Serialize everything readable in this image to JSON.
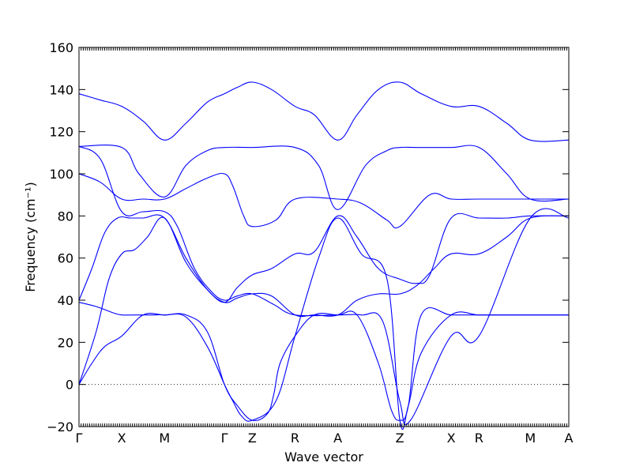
{
  "chart_data": {
    "type": "line",
    "title": "",
    "xlabel": "Wave vector",
    "ylabel": "Frequency (cm⁻¹)",
    "ylim": [
      -20,
      160
    ],
    "yticks": [
      -20,
      0,
      20,
      40,
      60,
      80,
      100,
      120,
      140,
      160
    ],
    "grid": false,
    "zero_line": true,
    "colors": {
      "bands": "#0000ff",
      "axis": "#000000"
    },
    "xlim": [
      0,
      11.45
    ],
    "high_symmetry_points": [
      {
        "label": "Γ",
        "x": 0
      },
      {
        "label": "X",
        "x": 1
      },
      {
        "label": "M",
        "x": 2
      },
      {
        "label": "Γ",
        "x": 3.4
      },
      {
        "label": "Z",
        "x": 4.05
      },
      {
        "label": "R",
        "x": 5.05
      },
      {
        "label": "A",
        "x": 6.05
      },
      {
        "label": "Z",
        "x": 7.5
      },
      {
        "label": "X",
        "x": 8.7
      },
      {
        "label": "R",
        "x": 9.35
      },
      {
        "label": "M",
        "x": 10.55
      },
      {
        "label": "A",
        "x": 11.45
      }
    ],
    "series": [
      {
        "x": [
          0,
          0.5,
          1,
          1.5,
          2,
          2.5,
          3,
          3.4,
          3.7,
          4.05,
          4.5,
          5.05,
          5.5,
          6.05,
          6.5,
          7,
          7.5,
          8,
          8.7,
          9.35,
          10,
          10.55,
          11.45
        ],
        "y": [
          138,
          135,
          132,
          125,
          116,
          124,
          134,
          138,
          141,
          143.5,
          140,
          132,
          128,
          116,
          128,
          140,
          143.5,
          138,
          132,
          132,
          124,
          116,
          116
        ]
      },
      {
        "x": [
          0,
          1,
          1.4,
          2,
          2.5,
          3,
          3.4,
          4.05,
          5.05,
          5.6,
          6.05,
          6.7,
          7.2,
          7.5,
          7.9,
          8.7,
          9.35,
          10,
          10.55,
          11.45
        ],
        "y": [
          113,
          112.5,
          100,
          89,
          104,
          111,
          112.5,
          112.5,
          112.5,
          104,
          83,
          104,
          111,
          112.5,
          112.5,
          112.5,
          112.5,
          100,
          88,
          88
        ]
      },
      {
        "x": [
          0,
          0.5,
          1,
          1.5,
          2,
          2.3,
          2.7,
          3.1,
          3.4,
          3.7,
          4.05,
          4.55,
          5.05,
          6.05,
          6.6,
          7.1,
          7.5,
          7.75,
          8.7,
          9.35,
          10.55,
          11.45
        ],
        "y": [
          113,
          107,
          82,
          82,
          82,
          75,
          55,
          44,
          40,
          42,
          43,
          38,
          33,
          33,
          33,
          30,
          -8,
          -17,
          23,
          23,
          79,
          79
        ]
      },
      {
        "x": [
          0,
          0.5,
          1,
          1.5,
          2,
          2.5,
          3,
          3.4,
          3.6,
          3.85,
          4.05,
          4.6,
          5.05,
          6.05,
          6.6,
          7.2,
          7.5,
          8.2,
          8.7,
          9.35,
          10,
          10.55,
          11.45
        ],
        "y": [
          100,
          96,
          88,
          88,
          88,
          93,
          98,
          100,
          94,
          80,
          75,
          78,
          88,
          88,
          86,
          78,
          75,
          90,
          88,
          88,
          88,
          88,
          88
        ]
      },
      {
        "x": [
          0,
          0.3,
          0.6,
          0.9,
          1.2,
          1.5,
          2,
          2.5,
          3,
          3.4,
          3.7,
          4.05,
          4.5,
          5.05,
          5.5,
          6.05,
          6.5,
          7,
          7.5,
          7.9,
          8.3,
          8.7,
          9.35,
          10,
          10.55,
          11.45
        ],
        "y": [
          40,
          55,
          72,
          79,
          79,
          79,
          79,
          60,
          45,
          39,
          41,
          43,
          42,
          33,
          33,
          33,
          40,
          43,
          43,
          47,
          55,
          62,
          62,
          70,
          79,
          80
        ]
      },
      {
        "x": [
          0,
          0.4,
          0.8,
          1,
          1.3,
          1.7,
          2,
          2.5,
          3,
          3.4,
          3.6,
          3.8,
          4.05,
          4.6,
          5.05,
          5.6,
          6.05,
          6.6,
          7.2,
          7.5,
          7.7,
          8,
          8.7,
          9.35,
          10,
          10.55,
          11.45
        ],
        "y": [
          39,
          37,
          34,
          33,
          33,
          33,
          33,
          32,
          18,
          0,
          -8,
          -15,
          -17,
          -8,
          23,
          60,
          79,
          62,
          50,
          -17,
          -10,
          15,
          33,
          33,
          33,
          33,
          33
        ]
      },
      {
        "x": [
          0,
          0.3,
          0.6,
          1,
          1.5,
          2,
          2.5,
          3,
          3.4,
          3.7,
          4.05,
          4.4,
          4.55,
          4.7,
          5.05,
          5.5,
          6.05,
          6.5,
          7,
          7.3,
          7.5,
          7.7,
          8,
          8.7,
          9.35,
          10,
          10.55,
          11.45
        ],
        "y": [
          0,
          10,
          18,
          23,
          33,
          33,
          33,
          25,
          0,
          -10,
          -17,
          -14,
          -5,
          10,
          23,
          33,
          33,
          33,
          10,
          -12,
          -17,
          -10,
          33,
          33,
          33,
          33,
          33,
          33
        ]
      },
      {
        "x": [
          0,
          0.4,
          0.7,
          1,
          1.3,
          1.6,
          2,
          2.5,
          3,
          3.4,
          3.7,
          4.05,
          4.5,
          5.05,
          5.5,
          6.05,
          6.5,
          7,
          7.5,
          7.9,
          8.2,
          8.7,
          9.35,
          10,
          10.55,
          11.45
        ],
        "y": [
          0,
          25,
          50,
          62,
          64,
          70,
          79,
          58,
          45,
          39,
          46,
          52,
          55,
          62,
          63,
          80,
          70,
          55,
          50,
          48,
          52,
          79,
          79,
          79,
          80,
          80
        ]
      }
    ]
  }
}
